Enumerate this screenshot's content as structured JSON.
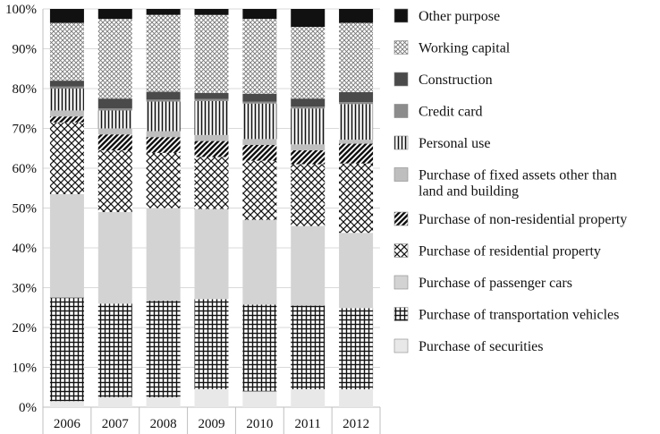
{
  "chart_data": {
    "type": "stacked-bar-100",
    "categories": [
      "2006",
      "2007",
      "2008",
      "2009",
      "2010",
      "2011",
      "2012"
    ],
    "y_ticks": [
      "0%",
      "10%",
      "20%",
      "30%",
      "40%",
      "50%",
      "60%",
      "70%",
      "80%",
      "90%",
      "100%"
    ],
    "ylim": [
      0,
      100
    ],
    "legend_position": "right",
    "series": [
      {
        "name": "Purchase of securities",
        "pattern": "light-solid",
        "color": "#e8e8e8",
        "values": [
          1.5,
          2.5,
          2.5,
          4.5,
          4.0,
          4.5,
          4.5
        ]
      },
      {
        "name": "Purchase of transportation vehicles",
        "pattern": "grid",
        "color": "#ffffff",
        "values": [
          26,
          23.5,
          24.5,
          22.5,
          22,
          21,
          20.5
        ]
      },
      {
        "name": "Purchase of passenger cars",
        "pattern": "solid",
        "color": "#d3d3d3",
        "values": [
          26,
          23,
          23.5,
          22.5,
          21.5,
          20,
          19
        ]
      },
      {
        "name": "Purchase of residential property",
        "pattern": "crosshatch",
        "color": "#ffffff",
        "values": [
          18,
          15.5,
          14,
          13,
          15,
          15.5,
          17.5
        ]
      },
      {
        "name": "Purchase of non-residential property",
        "pattern": "diagonal",
        "color": "#ffffff",
        "values": [
          1.5,
          4,
          4,
          4,
          4,
          3.5,
          5
        ]
      },
      {
        "name": "Purchase of fixed assets other than land and building",
        "pattern": "solid",
        "color": "#bebebe",
        "values": [
          1.5,
          1.5,
          1.5,
          1.5,
          1.5,
          1.5,
          1.0
        ]
      },
      {
        "name": "Personal use",
        "pattern": "vertical",
        "color": "#ffffff",
        "values": [
          5.5,
          4.5,
          7.5,
          8.5,
          9,
          9,
          9
        ]
      },
      {
        "name": "Credit card",
        "pattern": "solid",
        "color": "#8c8c8c",
        "values": [
          0.5,
          0.5,
          0.5,
          0.5,
          0.5,
          0.5,
          0.5
        ]
      },
      {
        "name": "Construction",
        "pattern": "solid",
        "color": "#4a4a4a",
        "values": [
          1.5,
          2.5,
          2.0,
          1.5,
          2.0,
          2.0,
          2.5
        ]
      },
      {
        "name": "Working capital",
        "pattern": "dense-crosshatch",
        "color": "#ffffff",
        "values": [
          14.5,
          20,
          19.5,
          19.5,
          19,
          18,
          17.5
        ]
      },
      {
        "name": "Other purpose",
        "pattern": "solid",
        "color": "#111111",
        "values": [
          3.5,
          2.5,
          1.5,
          1.5,
          2.5,
          4.5,
          3.5
        ]
      }
    ]
  }
}
